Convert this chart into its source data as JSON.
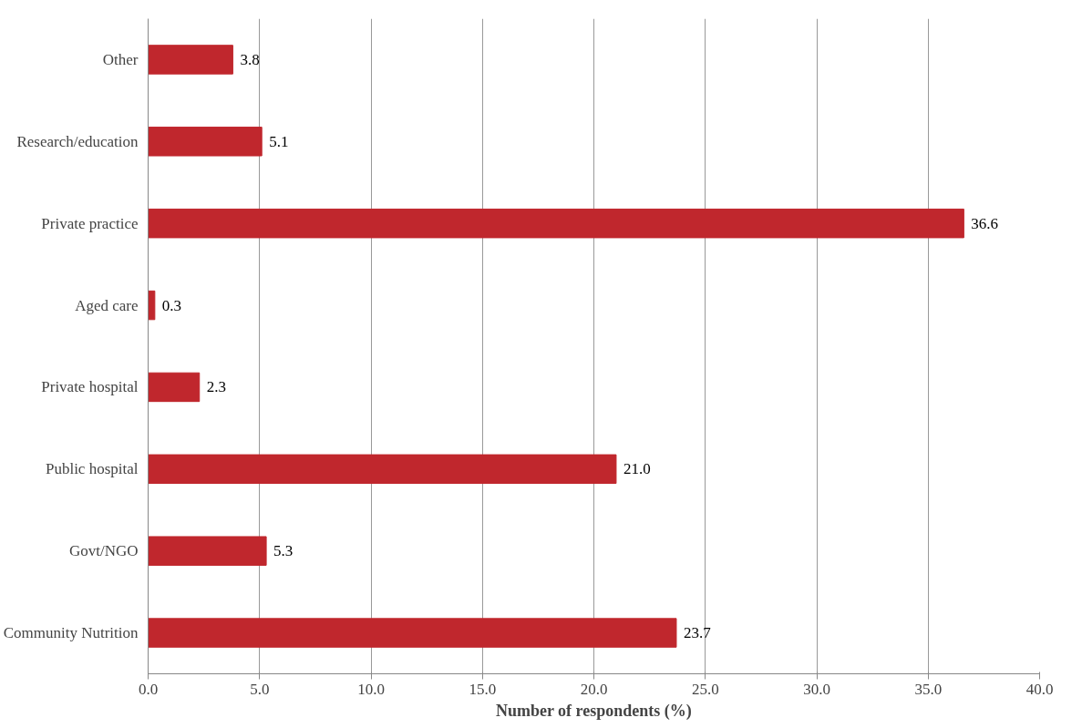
{
  "chart_data": {
    "type": "bar",
    "orientation": "horizontal",
    "categories": [
      "Other",
      "Research/education",
      "Private practice",
      "Aged care",
      "Private hospital",
      "Public hospital",
      "Govt/NGO",
      "Community Nutrition"
    ],
    "values": [
      3.8,
      5.1,
      36.6,
      0.3,
      2.3,
      21.0,
      5.3,
      23.7
    ],
    "value_labels": [
      "3.8",
      "5.1",
      "36.6",
      "0.3",
      "2.3",
      "21.0",
      "5.3",
      "23.7"
    ],
    "color": "#c0272d",
    "xlabel": "Number of respondents (%)",
    "xlim": [
      0,
      40
    ],
    "xticks": [
      {
        "value": 0,
        "label": "0.0"
      },
      {
        "value": 5,
        "label": "5.0"
      },
      {
        "value": 10,
        "label": "10.0"
      },
      {
        "value": 15,
        "label": "15.0"
      },
      {
        "value": 20,
        "label": "20.0"
      },
      {
        "value": 25,
        "label": "25.0"
      },
      {
        "value": 30,
        "label": "30.0"
      },
      {
        "value": 35,
        "label": "35.0"
      },
      {
        "value": 40,
        "label": "40.0"
      }
    ],
    "grid": "x"
  }
}
